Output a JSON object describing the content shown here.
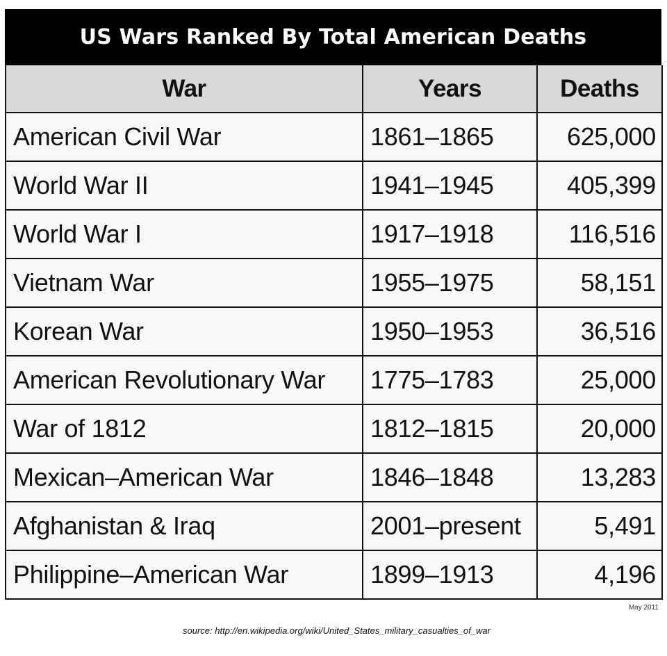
{
  "title": "US Wars Ranked By Total American Deaths",
  "columns": {
    "war": "War",
    "years": "Years",
    "deaths": "Deaths"
  },
  "rows": [
    {
      "war": "American Civil War",
      "years": "1861–1865",
      "deaths": "625,000"
    },
    {
      "war": "World War II",
      "years": "1941–1945",
      "deaths": "405,399"
    },
    {
      "war": "World War I",
      "years": "1917–1918",
      "deaths": "116,516"
    },
    {
      "war": "Vietnam War",
      "years": "1955–1975",
      "deaths": "58,151"
    },
    {
      "war": "Korean War",
      "years": "1950–1953",
      "deaths": "36,516"
    },
    {
      "war": "American Revolutionary War",
      "years": "1775–1783",
      "deaths": "25,000"
    },
    {
      "war": "War of 1812",
      "years": "1812–1815",
      "deaths": "20,000"
    },
    {
      "war": "Mexican–American War",
      "years": "1846–1848",
      "deaths": "13,283"
    },
    {
      "war": "Afghanistan & Iraq",
      "years": "2001–present",
      "deaths": "5,491"
    },
    {
      "war": "Philippine–American War",
      "years": "1899–1913",
      "deaths": "4,196"
    }
  ],
  "footer": {
    "date": "May 2011",
    "source": "source: http://en.wikipedia.org/wiki/United_States_military_casualties_of_war"
  },
  "colors": {
    "title_background": "#000000",
    "title_text": "#ffffff",
    "header_background": "#d9d9d9",
    "body_background": "#f8f8f8",
    "border": "#111111"
  }
}
